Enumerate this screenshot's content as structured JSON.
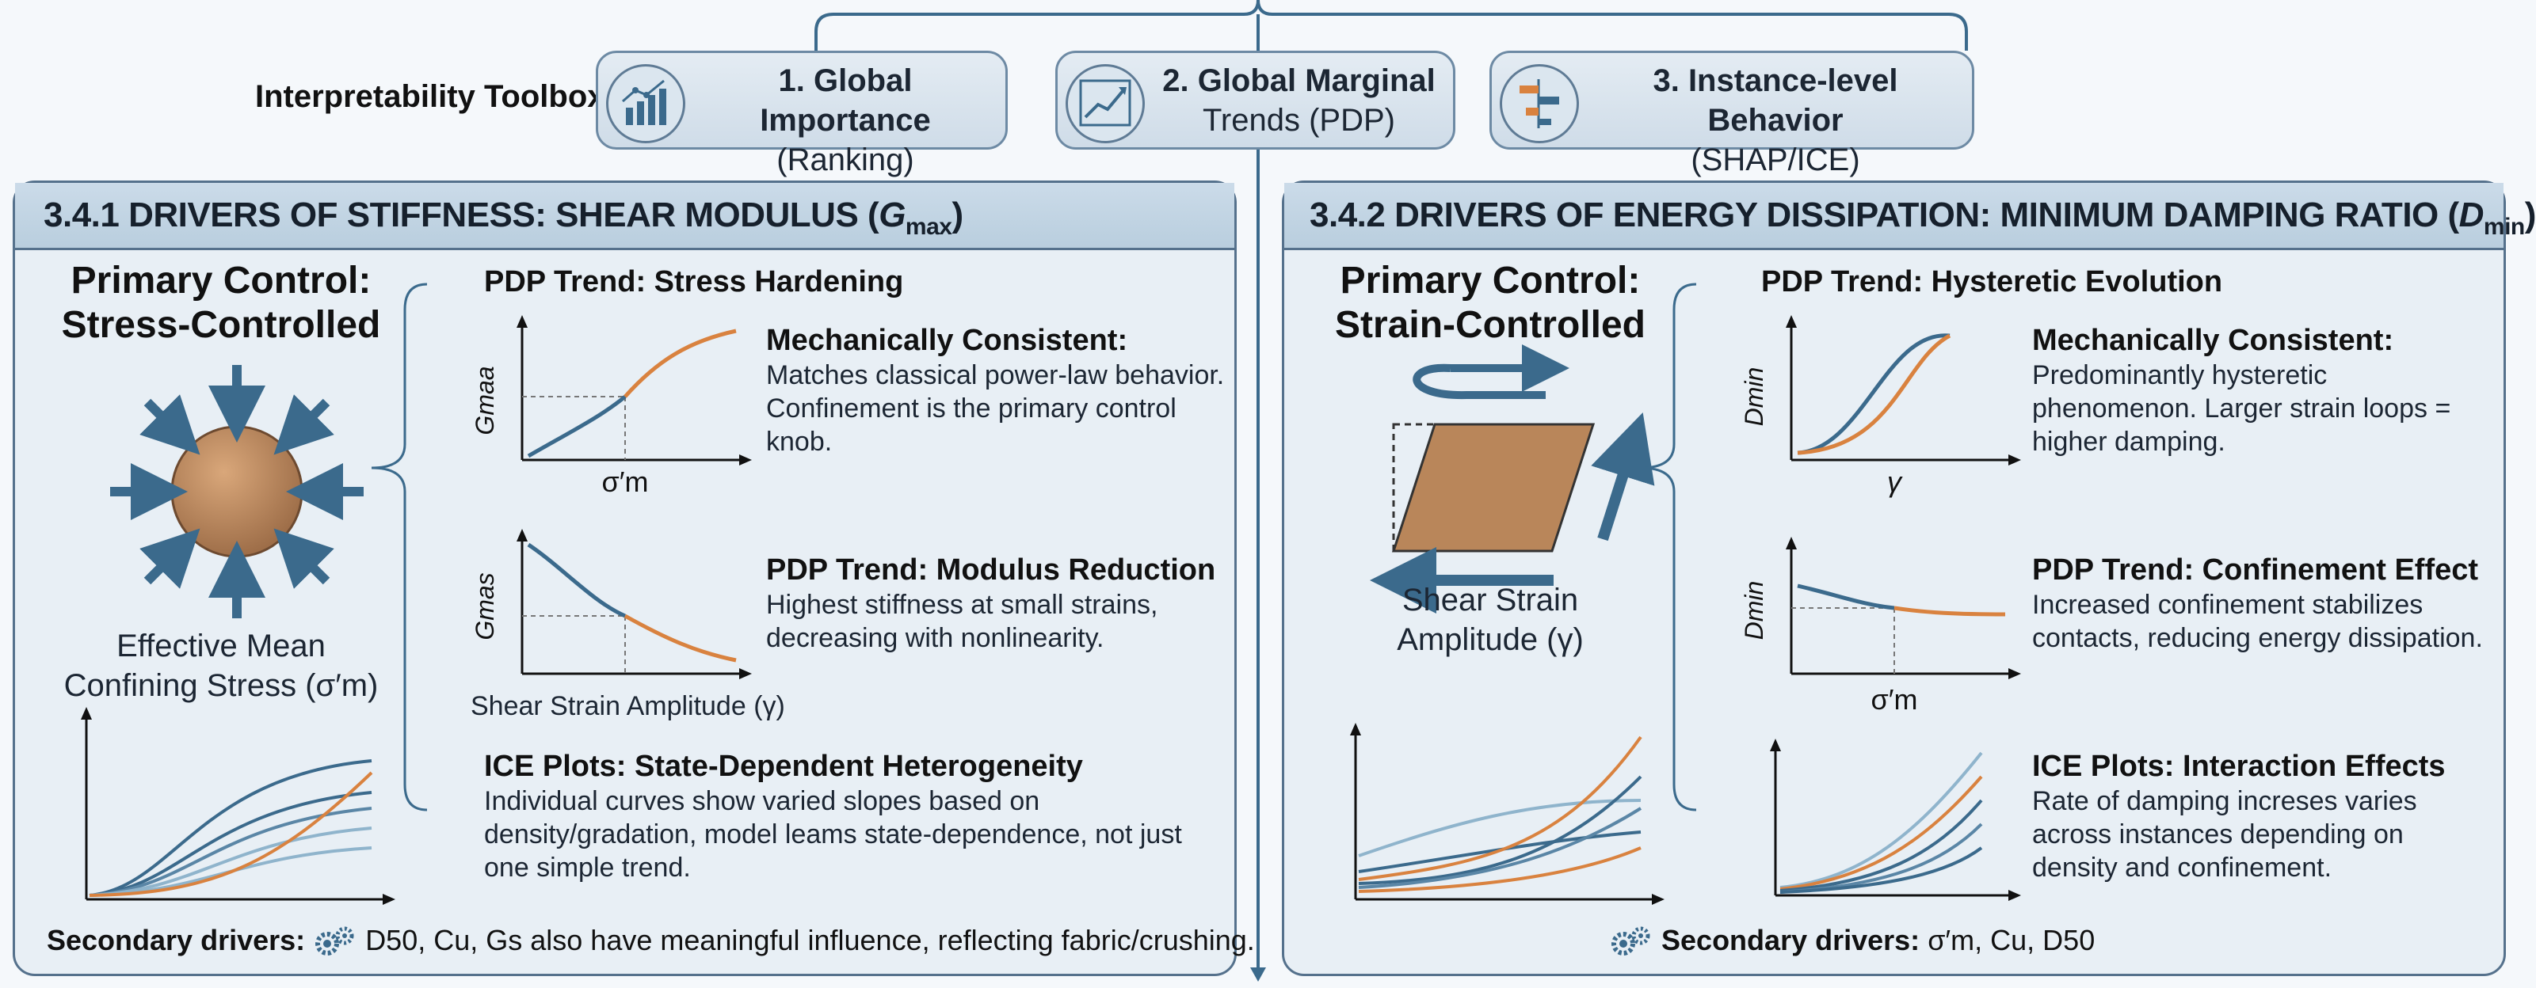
{
  "toolbox": {
    "label": "Interpretability Toolbox:",
    "items": [
      {
        "title": "1. Global Importance",
        "sub": "(Ranking)",
        "icon": "bar-chart-icon"
      },
      {
        "title": "2. Global Marginal",
        "sub": "Trends (PDP)",
        "icon": "trend-line-icon"
      },
      {
        "title": "3. Instance-level Behavior",
        "sub": "(SHAP/ICE)",
        "icon": "shap-bars-icon"
      }
    ]
  },
  "left_panel": {
    "title_prefix": "3.4.1 DRIVERS OF STIFFNESS: SHEAR MODULUS (",
    "title_sym": "G",
    "title_sub": "max",
    "title_suffix": ")",
    "primary_line1": "Primary Control:",
    "primary_line2": "Stress-Controlled",
    "caption_line1": "Effective Mean",
    "caption_line2": "Confining Stress (σ′m)",
    "pdp1_head": "PDP Trend: Stress Hardening",
    "pdp1_ylabel": "Gmaa",
    "pdp1_xlabel": "σ′m",
    "mech_head": "Mechanically Consistent:",
    "mech_body": "Matches classical power-law behavior. Confinement is the primary control knob.",
    "pdp2_head": "PDP Trend: Modulus Reduction",
    "pdp2_ylabel": "Gmas",
    "pdp2_xlabel": "Shear Strain Amplitude (γ)",
    "pdp2_body": "Highest stiffness at small strains, decreasing with nonlinearity.",
    "ice_head": "ICE Plots: State-Dependent Heterogeneity",
    "ice_body": "Individual curves show varied slopes based on density/gradation, model leams state-dependence, not just one simple trend.",
    "footer_label": "Secondary drivers:",
    "footer_text": "D50, Cu, Gs also have meaningful influence, reflecting fabric/crushing."
  },
  "right_panel": {
    "title_prefix": "3.4.2 DRIVERS OF ENERGY DISSIPATION: MINIMUM DAMPING RATIO (",
    "title_sym": "D",
    "title_sub": "min",
    "title_suffix": ")",
    "primary_line1": "Primary Control:",
    "primary_line2": "Strain-Controlled",
    "caption_line1": "Shear Strain",
    "caption_line2": "Amplitude (γ)",
    "pdp1_head": "PDP Trend: Hysteretic Evolution",
    "pdp1_ylabel": "Dmin",
    "pdp1_xlabel": "γ",
    "mech_head": "Mechanically Consistent:",
    "mech_body": "Predominantly hysteretic phenomenon. Larger strain loops = higher damping.",
    "pdp2_head": "PDP Trend: Confinement Effect",
    "pdp2_ylabel": "Dmin",
    "pdp2_xlabel": "σ′m",
    "pdp2_body": "Increased confinement stabilizes contacts, reducing energy dissipation.",
    "ice_head": "ICE Plots: Interaction Effects",
    "ice_body": "Rate of damping increses varies across instances depending on density and confinement.",
    "footer_label": "Secondary drivers:",
    "footer_text": "σ′m, Cu, D50"
  },
  "colors": {
    "blue": "#3b6a8c",
    "orange": "#d9823f",
    "light_blue": "#8fb4cc",
    "frame": "#55718c"
  }
}
